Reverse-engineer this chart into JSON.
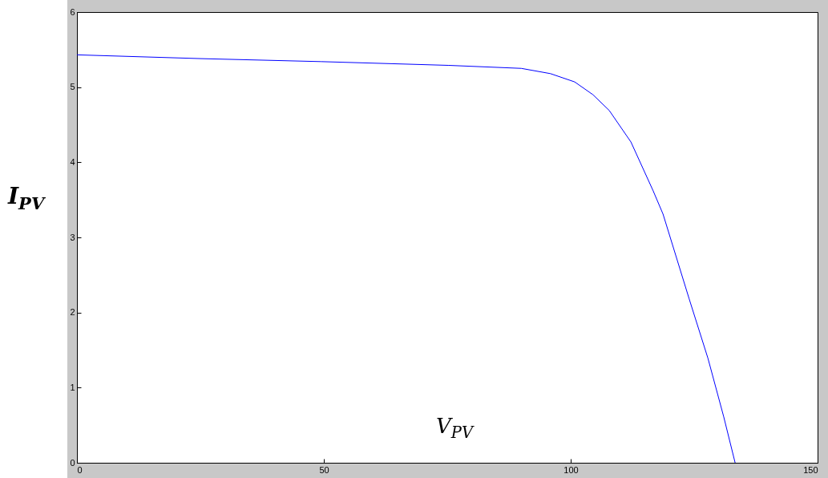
{
  "chart_data": {
    "type": "line",
    "xlabel": "V$_{PV}$",
    "ylabel": "I$_{PV}$",
    "xlim": [
      0,
      150
    ],
    "xticks": [
      0,
      50,
      100,
      150
    ],
    "ylim": [
      0,
      6
    ],
    "yticks": [
      0,
      1,
      2,
      3,
      4,
      5,
      6
    ],
    "grid": false,
    "marker": "none",
    "line_style": "solid",
    "x": [
      0,
      25,
      49.4,
      75.3,
      90,
      95.9,
      100.8,
      104.5,
      107.8,
      112.2,
      116.7,
      118.7,
      124,
      127.8,
      131,
      133.3
    ],
    "series": [
      {
        "color": "#0000ff",
        "values": [
          5.43,
          5.38,
          5.34,
          5.29,
          5.25,
          5.18,
          5.07,
          4.9,
          4.69,
          4.27,
          3.62,
          3.31,
          2.18,
          1.39,
          0.61,
          0
        ]
      }
    ]
  }
}
